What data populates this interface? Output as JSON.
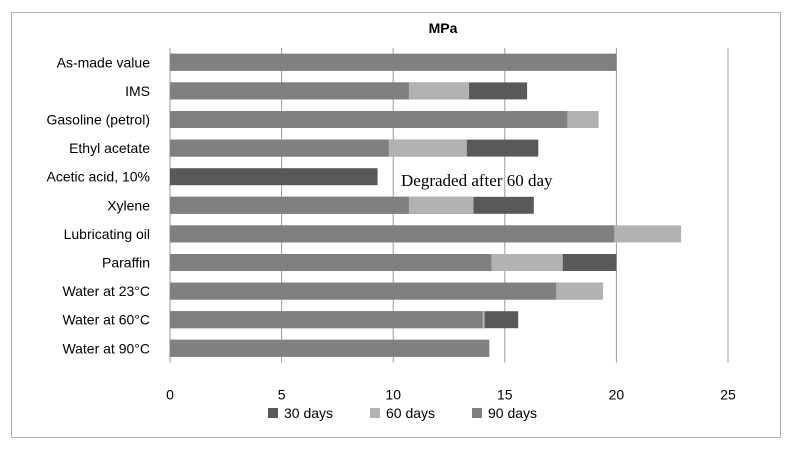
{
  "chart_data": {
    "type": "bar",
    "orientation": "horizontal",
    "stacked": false,
    "overlay": true,
    "title": "MPa",
    "categories": [
      "As-made value",
      "IMS",
      "Gasoline (petrol)",
      "Ethyl acetate",
      "Acetic acid, 10%",
      "Xylene",
      "Lubricating oil",
      "Paraffin",
      "Water at 23°C",
      "Water at 60°C",
      "Water at 90°C"
    ],
    "series": [
      {
        "name": "30 days",
        "color": "#595959",
        "values": [
          20,
          16,
          19.2,
          16.5,
          9.3,
          16.3,
          19.9,
          20,
          19.4,
          15.6,
          14.3
        ]
      },
      {
        "name": "60 days",
        "color": "#b2b2b2",
        "values": [
          20,
          13.4,
          19.2,
          13.3,
          null,
          13.6,
          22.9,
          17.6,
          19.4,
          14.1,
          14.3
        ]
      },
      {
        "name": "90 days",
        "color": "#808080",
        "values": [
          20,
          10.7,
          17.8,
          9.8,
          null,
          10.7,
          19.9,
          14.4,
          17.3,
          14,
          14.3
        ]
      }
    ],
    "xlim": [
      0,
      25
    ],
    "xticks": [
      "0",
      "5",
      "10",
      "15",
      "20",
      "25"
    ],
    "vertical_grid": true,
    "legend_position": "bottom",
    "annotation": "Degraded after 60 day"
  }
}
